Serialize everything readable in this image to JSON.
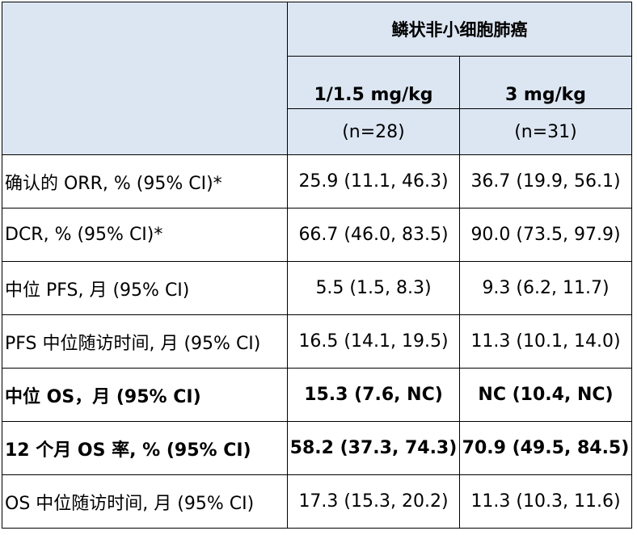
{
  "table": {
    "group_header": "鳞状非小细胞肺癌",
    "columns": [
      {
        "dose": "1/1.5 mg/kg",
        "n": "(n=28)"
      },
      {
        "dose": "3 mg/kg",
        "n": "(n=31)"
      }
    ],
    "rows": [
      {
        "label": "确认的 ORR, % (95% CI)*",
        "values": [
          "25.9 (11.1, 46.3)",
          "36.7 (19.9, 56.1)"
        ],
        "bold": false
      },
      {
        "label": "DCR, % (95% CI)*",
        "values": [
          "66.7 (46.0, 83.5)",
          "90.0 (73.5, 97.9)"
        ],
        "bold": false
      },
      {
        "label": "中位 PFS, 月  (95% CI)",
        "values": [
          "5.5 (1.5, 8.3)",
          "9.3 (6.2, 11.7)"
        ],
        "bold": false
      },
      {
        "label": "PFS 中位随访时间, 月  (95% CI)",
        "values": [
          "16.5 (14.1, 19.5)",
          "11.3 (10.1, 14.0)"
        ],
        "bold": false
      },
      {
        "label": "中位 OS，月  (95% CI)",
        "values": [
          "15.3 (7.6, NC)",
          "NC (10.4, NC)"
        ],
        "bold": true
      },
      {
        "label": "12 个月 OS 率, % (95% CI)",
        "values": [
          "58.2 (37.3, 74.3)",
          "70.9 (49.5, 84.5)"
        ],
        "bold": true
      },
      {
        "label": "OS 中位随访时间, 月  (95% CI)",
        "values": [
          "17.3 (15.3, 20.2)",
          "11.3 (10.3, 11.6)"
        ],
        "bold": false
      }
    ]
  }
}
